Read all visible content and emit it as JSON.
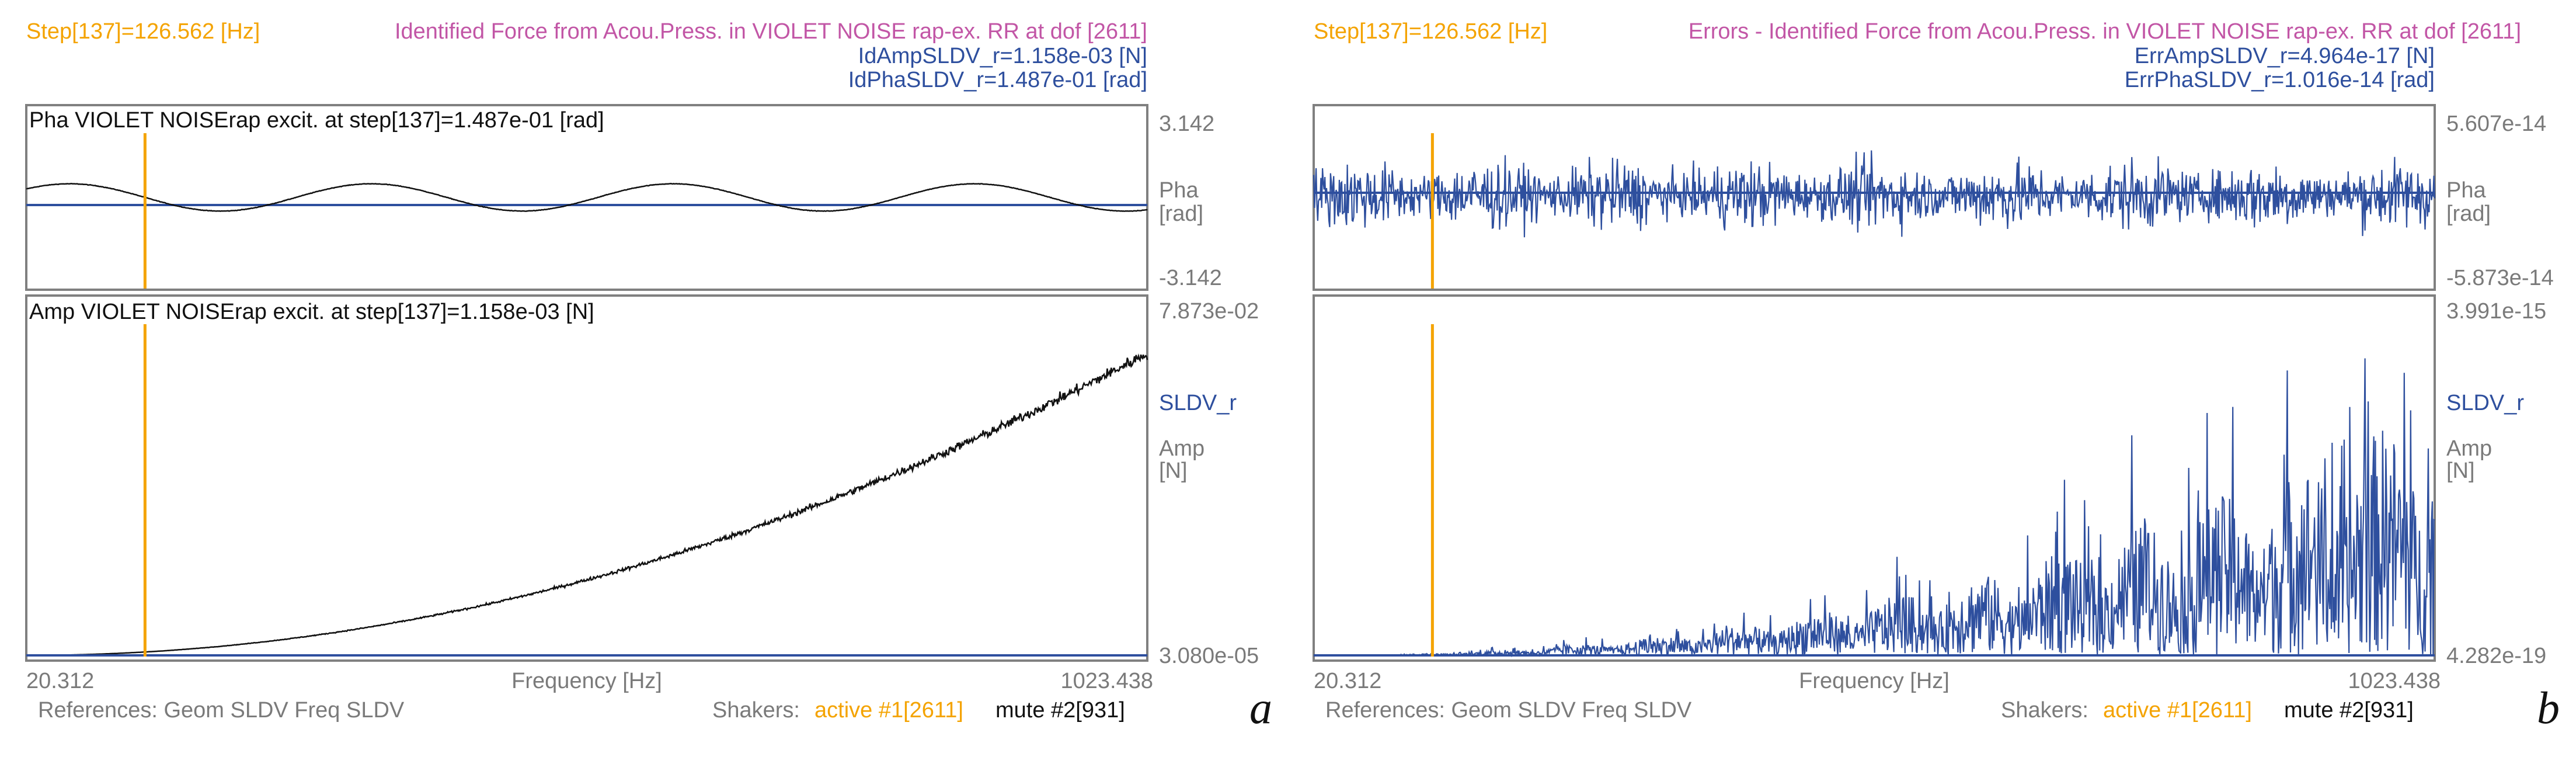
{
  "colors": {
    "orange": "#f4a300",
    "magenta": "#c256a6",
    "blue": "#2e4f9e",
    "black": "#111111",
    "gray": "#7a7a7a",
    "frame": "#808080"
  },
  "chart_data": [
    {
      "type": "line",
      "panel_letter": "a",
      "step_label": "Step[137]=126.562 [Hz]",
      "title": "Identified Force from Acou.Press. in VIOLET NOISE rap-ex. RR at dof [2611]",
      "legend_amp": "IdAmpSLDV_r=1.158e-03 [N]",
      "legend_pha": "IdPhaSLDV_r=1.487e-01 [rad]",
      "x_start_label": "20.312",
      "x_end_label": "1023.438",
      "xlabel": "Frequency [Hz]",
      "xlim": [
        20.312,
        1023.438
      ],
      "cursor_hz": 126.562,
      "references": "References: Geom SLDV Freq SLDV",
      "shakers_label": "Shakers:",
      "shaker_active": "active #1[2611]",
      "shaker_mute": "mute #2[931]",
      "pha": {
        "title": "Pha VIOLET NOISErap excit. at step[137]=1.487e-01 [rad]",
        "y_top_label": "3.142",
        "y_bottom_label": "-3.142",
        "ylabel1": "Pha",
        "ylabel2": "[rad]",
        "ylim": [
          -3.142,
          3.142
        ],
        "reference_line": 0,
        "series_kind": "sine",
        "amplitude": 0.48,
        "period_hz": 270,
        "phase_ref_hz": 126.562,
        "noise": 0.015
      },
      "amp": {
        "title": "Amp VIOLET NOISErap excit. at step[137]=1.158e-03 [N]",
        "y_top_label": "7.873e-02",
        "y_bottom_label": "3.080e-05",
        "series_name": "SLDV_r",
        "ylabel1": "Amp",
        "ylabel2": "[N]",
        "ylim": [
          3.08e-05,
          0.07873
        ],
        "reference_line": 3.08e-05,
        "series_kind": "quadratic",
        "end_value": 0.07,
        "noise": 0.035
      }
    },
    {
      "type": "line",
      "panel_letter": "b",
      "step_label": "Step[137]=126.562 [Hz]",
      "title": "Errors - Identified Force from Acou.Press. in VIOLET NOISE rap-ex. RR at dof [2611]",
      "legend_amp": "ErrAmpSLDV_r=4.964e-17 [N]",
      "legend_pha": "ErrPhaSLDV_r=1.016e-14 [rad]",
      "x_start_label": "20.312",
      "x_end_label": "1023.438",
      "xlabel": "Frequency [Hz]",
      "xlim": [
        20.312,
        1023.438
      ],
      "cursor_hz": 126.562,
      "references": "References: Geom SLDV Freq SLDV",
      "shakers_label": "Shakers:",
      "shaker_active": "active #1[2611]",
      "shaker_mute": "mute #2[931]",
      "pha": {
        "title": "",
        "y_top_label": "5.607e-14",
        "y_bottom_label": "-5.873e-14",
        "ylabel1": "Pha",
        "ylabel2": "[rad]",
        "ylim": [
          -5.873e-14,
          5.607e-14
        ],
        "reference_line": 0,
        "series_kind": "noise",
        "amplitude": 2.9e-14
      },
      "amp": {
        "title": "",
        "y_top_label": "3.991e-15",
        "y_bottom_label": "4.282e-19",
        "series_name": "SLDV_r",
        "ylabel1": "Amp",
        "ylabel2": "[N]",
        "ylim": [
          4.282e-19,
          3.991e-15
        ],
        "reference_line": 4.282e-19,
        "series_kind": "growing-noise",
        "end_value": 3.991e-15
      }
    }
  ]
}
